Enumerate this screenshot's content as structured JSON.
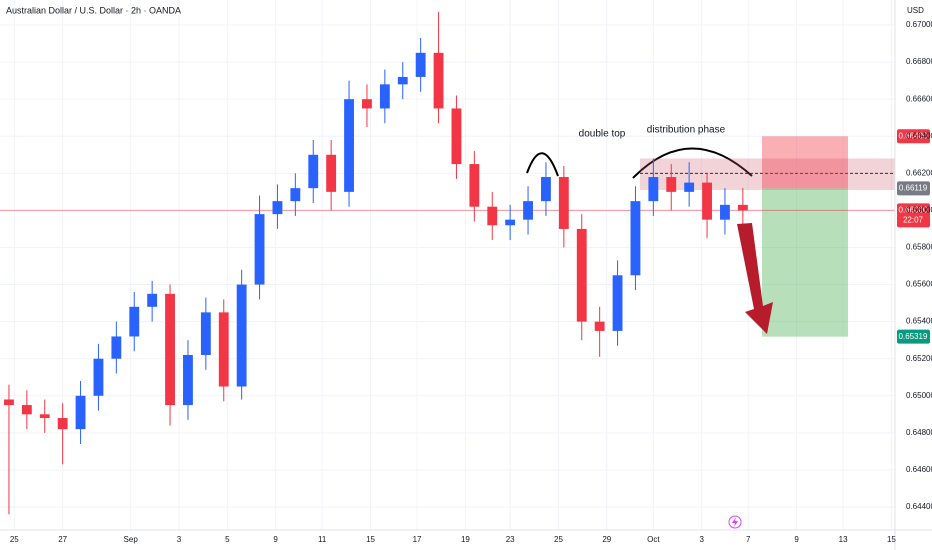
{
  "chart_data": {
    "type": "candlestick",
    "title": "Australian Dollar / U.S. Dollar · 2h · OANDA",
    "currency": "USD",
    "up_color": "#2962ff",
    "down_color": "#f23645",
    "grid": true,
    "xlim": [
      0,
      50
    ],
    "xticks": [
      {
        "value": 0.8,
        "label": "25"
      },
      {
        "value": 3.5,
        "label": "27"
      },
      {
        "value": 7.3,
        "label": "Sep"
      },
      {
        "value": 10,
        "label": "3"
      },
      {
        "value": 12.7,
        "label": "5"
      },
      {
        "value": 15.4,
        "label": "9"
      },
      {
        "value": 18,
        "label": "11"
      },
      {
        "value": 20.7,
        "label": "15"
      },
      {
        "value": 23.3,
        "label": "17"
      },
      {
        "value": 26,
        "label": "19"
      },
      {
        "value": 28.5,
        "label": "23"
      },
      {
        "value": 31.2,
        "label": "25"
      },
      {
        "value": 33.9,
        "label": "29"
      },
      {
        "value": 36.5,
        "label": "Oct"
      },
      {
        "value": 39.2,
        "label": "3"
      },
      {
        "value": 41.8,
        "label": "7"
      },
      {
        "value": 44.5,
        "label": "9"
      },
      {
        "value": 47.1,
        "label": "13"
      },
      {
        "value": 49.8,
        "label": "15"
      }
    ],
    "ylim": [
      0.64276,
      0.67135
    ],
    "yticks": [
      {
        "value": 0.644,
        "label": "0.64400"
      },
      {
        "value": 0.646,
        "label": "0.64600"
      },
      {
        "value": 0.648,
        "label": "0.64800"
      },
      {
        "value": 0.65,
        "label": "0.65000"
      },
      {
        "value": 0.652,
        "label": "0.65200"
      },
      {
        "value": 0.654,
        "label": "0.65400"
      },
      {
        "value": 0.656,
        "label": "0.65600"
      },
      {
        "value": 0.658,
        "label": "0.65800"
      },
      {
        "value": 0.66,
        "label": "0.66000"
      },
      {
        "value": 0.662,
        "label": "0.66200"
      },
      {
        "value": 0.664,
        "label": "0.66400"
      },
      {
        "value": 0.666,
        "label": "0.66600"
      },
      {
        "value": 0.668,
        "label": "0.66800"
      },
      {
        "value": 0.67,
        "label": "0.67000"
      }
    ],
    "open": [
      0.6498,
      0.6495,
      0.649,
      0.6488,
      0.6482,
      0.65,
      0.652,
      0.6532,
      0.6548,
      0.6555,
      0.6495,
      0.6522,
      0.6545,
      0.6505,
      0.656,
      0.6598,
      0.6605,
      0.6612,
      0.663,
      0.661,
      0.666,
      0.6655,
      0.6668,
      0.6672,
      0.6685,
      0.6655,
      0.6625,
      0.6602,
      0.6592,
      0.6595,
      0.6605,
      0.6618,
      0.659,
      0.654,
      0.6535,
      0.6565,
      0.6605,
      0.6618,
      0.661,
      0.6615,
      0.6595,
      0.6603
    ],
    "high": [
      0.6506,
      0.6503,
      0.6498,
      0.6496,
      0.6508,
      0.6528,
      0.654,
      0.6556,
      0.6562,
      0.656,
      0.653,
      0.6553,
      0.6552,
      0.6568,
      0.6608,
      0.6614,
      0.662,
      0.6638,
      0.6638,
      0.667,
      0.6668,
      0.6676,
      0.668,
      0.6693,
      0.6707,
      0.6662,
      0.6632,
      0.661,
      0.6603,
      0.6613,
      0.6626,
      0.6624,
      0.6598,
      0.6548,
      0.6573,
      0.6613,
      0.6628,
      0.6625,
      0.6626,
      0.662,
      0.6612,
      0.6612
    ],
    "low": [
      0.6436,
      0.6482,
      0.648,
      0.6463,
      0.6474,
      0.6492,
      0.6512,
      0.6524,
      0.654,
      0.6484,
      0.6487,
      0.6514,
      0.6497,
      0.6498,
      0.6552,
      0.659,
      0.6597,
      0.6604,
      0.66,
      0.6602,
      0.6645,
      0.6647,
      0.666,
      0.6664,
      0.6647,
      0.6617,
      0.6594,
      0.6584,
      0.6584,
      0.6587,
      0.6597,
      0.658,
      0.653,
      0.6521,
      0.6527,
      0.6557,
      0.6597,
      0.66,
      0.6602,
      0.6585,
      0.6587,
      0.659
    ],
    "close": [
      0.6495,
      0.649,
      0.6488,
      0.6482,
      0.65,
      0.652,
      0.6532,
      0.6548,
      0.6555,
      0.6495,
      0.6522,
      0.6545,
      0.6505,
      0.656,
      0.6598,
      0.6605,
      0.6612,
      0.663,
      0.661,
      0.666,
      0.6655,
      0.6668,
      0.6672,
      0.6685,
      0.6655,
      0.6625,
      0.6602,
      0.6592,
      0.6595,
      0.6605,
      0.6618,
      0.659,
      0.654,
      0.6535,
      0.6565,
      0.6605,
      0.6618,
      0.661,
      0.6615,
      0.6595,
      0.6603,
      0.66
    ],
    "resistance_zone": [
      0.6611,
      0.6628
    ],
    "dashed_level": 0.662,
    "position": {
      "stop": 0.664,
      "entry": 0.66119,
      "target": 0.65319
    },
    "current_price": {
      "value": 0.66,
      "label": "0.66000",
      "countdown": "22:07",
      "color": "#f23645"
    },
    "price_tags": [
      {
        "value": 0.664,
        "label": "0.66400",
        "color": "#f23645"
      },
      {
        "value": 0.66119,
        "label": "0.66119",
        "color": "#787b86"
      },
      {
        "value": 0.65319,
        "label": "0.65319",
        "color": "#089981"
      }
    ],
    "annotations": [
      "double top",
      "distribution phase"
    ]
  }
}
